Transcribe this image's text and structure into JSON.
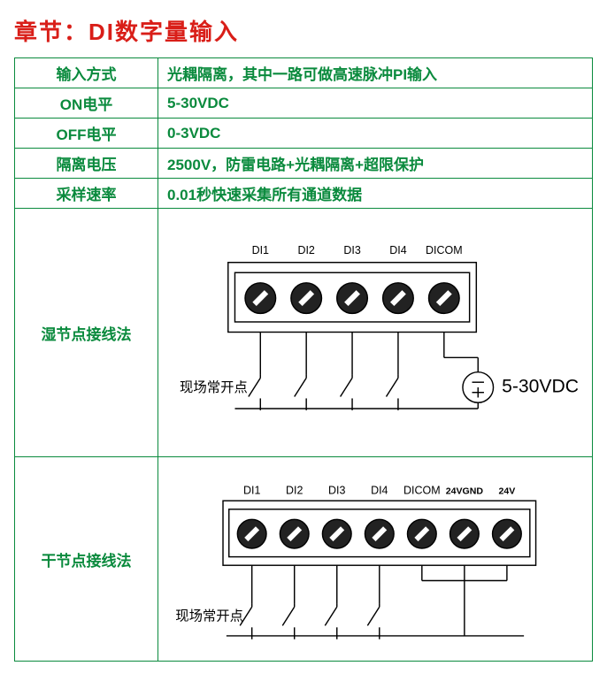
{
  "title": "章节：DI数字量输入",
  "spec_rows": [
    {
      "label": "输入方式",
      "value": "光耦隔离，其中一路可做高速脉冲PI输入"
    },
    {
      "label": "ON电平",
      "value": "5-30VDC"
    },
    {
      "label": "OFF电平",
      "value": "0-3VDC"
    },
    {
      "label": "隔离电压",
      "value": "2500V，防雷电路+光耦隔离+超限保护"
    },
    {
      "label": "采样速率",
      "value": "0.01秒快速采集所有通道数据"
    }
  ],
  "wet": {
    "label": "湿节点接线法",
    "terminal_labels": [
      "DI1",
      "DI2",
      "DI3",
      "DI4",
      "DICOM"
    ],
    "field_label": "现场常开点",
    "voltage_label": "5-30VDC",
    "colors": {
      "stroke": "#000000",
      "fill_dark": "#222222",
      "bg": "#ffffff",
      "text": "#000000"
    },
    "terminal_count": 5,
    "switch_count": 4,
    "font_size_small": 13,
    "font_size_field": 16,
    "font_size_voltage": 22
  },
  "dry": {
    "label": "干节点接线法",
    "terminal_labels": [
      "DI1",
      "DI2",
      "DI3",
      "DI4",
      "DICOM",
      "24VGND",
      "24V"
    ],
    "field_label": "现场常开点",
    "colors": {
      "stroke": "#000000",
      "fill_dark": "#222222",
      "bg": "#ffffff",
      "text": "#000000"
    },
    "terminal_count": 7,
    "switch_count": 4,
    "font_size_small": 13,
    "font_size_field": 16
  }
}
